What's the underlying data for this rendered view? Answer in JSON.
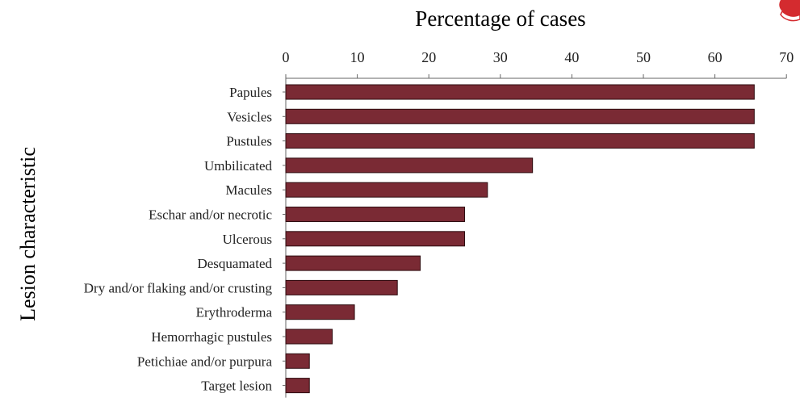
{
  "colors": {
    "bar_fill": "#7a2a34",
    "bar_stroke": "#2e0c10",
    "axis": "#666666",
    "text": "#222222",
    "corner_mark": "#d42b2f"
  },
  "chart_data": {
    "type": "bar",
    "orientation": "horizontal",
    "title": "Percentage of cases",
    "xlabel": "Percentage of cases",
    "ylabel": "Lesion characteristic",
    "xlim": [
      0,
      70
    ],
    "x_axis_position": "top",
    "x_ticks": [
      0,
      10,
      20,
      30,
      40,
      50,
      60,
      70
    ],
    "grid": false,
    "legend": "none",
    "categories": [
      "Papules",
      "Vesicles",
      "Pustules",
      "Umbilicated",
      "Macules",
      "Eschar and/or necrotic",
      "Ulcerous",
      "Desquamated",
      "Dry and/or flaking and/or crusting",
      "Erythroderma",
      "Hemorrhagic pustules",
      "Petichiae and/or purpura",
      "Target lesion"
    ],
    "values": [
      65.5,
      65.5,
      65.5,
      34.5,
      28.2,
      25.0,
      25.0,
      18.8,
      15.6,
      9.6,
      6.5,
      3.3,
      3.3
    ]
  }
}
